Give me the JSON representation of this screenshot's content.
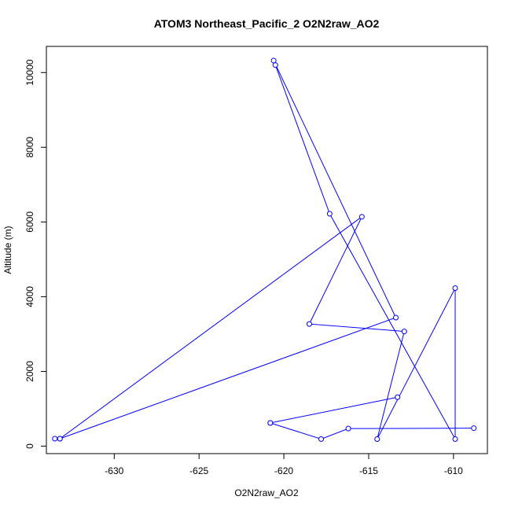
{
  "chart_data": {
    "type": "line",
    "title": "ATOM3 Northeast_Pacific_2 O2N2raw_AO2",
    "xlabel": "O2N2raw_AO2",
    "ylabel": "Altitude (m)",
    "xlim": [
      -634,
      -608
    ],
    "ylim": [
      -200,
      10700
    ],
    "x_ticks": [
      -630,
      -625,
      -620,
      -615,
      -610
    ],
    "x_tick_labels": [
      "-630",
      "-625",
      "-620",
      "-615",
      "-610"
    ],
    "y_ticks": [
      0,
      2000,
      4000,
      6000,
      8000,
      10000
    ],
    "y_tick_labels": [
      "0",
      "2000",
      "4000",
      "6000",
      "8000",
      "10000"
    ],
    "grid": false,
    "legend": "none",
    "series": [
      {
        "color": "#0000ff",
        "marker": "open-circle",
        "points": [
          {
            "x": -620.6,
            "y": 10320
          },
          {
            "x": -613.4,
            "y": 3440
          },
          {
            "x": -633.2,
            "y": 200
          },
          {
            "x": -633.5,
            "y": 200
          },
          {
            "x": -633.2,
            "y": 200
          },
          {
            "x": -615.4,
            "y": 6140
          },
          {
            "x": -618.5,
            "y": 3270
          },
          {
            "x": -612.9,
            "y": 3070
          },
          {
            "x": -614.5,
            "y": 190
          },
          {
            "x": -609.9,
            "y": 4230
          },
          {
            "x": -609.9,
            "y": 190
          },
          {
            "x": -617.3,
            "y": 6220
          },
          {
            "x": -620.5,
            "y": 10200
          }
        ]
      },
      {
        "color": "#0000ff",
        "marker": "open-circle",
        "points": [
          {
            "x": -620.8,
            "y": 620
          },
          {
            "x": -613.3,
            "y": 1310
          }
        ]
      },
      {
        "color": "#0000ff",
        "marker": "open-circle",
        "points": [
          {
            "x": -620.8,
            "y": 620
          },
          {
            "x": -617.8,
            "y": 190
          },
          {
            "x": -616.2,
            "y": 470
          },
          {
            "x": -608.8,
            "y": 480
          }
        ]
      }
    ]
  }
}
